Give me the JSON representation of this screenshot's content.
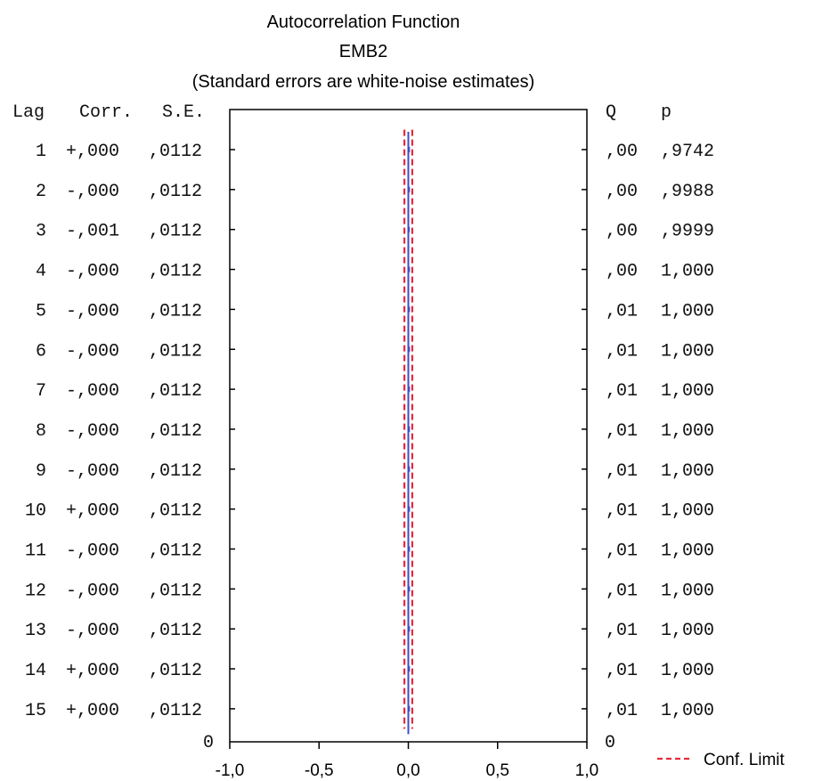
{
  "chart_data": {
    "type": "bar",
    "title": "Autocorrelation Function",
    "subtitle": "EMB2",
    "subtitle2": "(Standard errors are white-noise estimates)",
    "columns": {
      "lag": "Lag",
      "corr": "Corr.",
      "se": "S.E.",
      "q": "Q",
      "p": "p"
    },
    "rows": [
      {
        "lag": "1",
        "corr": "+,000",
        "se": ",0112",
        "q": ",00",
        "p": ",9742",
        "value": 0.0
      },
      {
        "lag": "2",
        "corr": "-,000",
        "se": ",0112",
        "q": ",00",
        "p": ",9988",
        "value": 0.0
      },
      {
        "lag": "3",
        "corr": "-,001",
        "se": ",0112",
        "q": ",00",
        "p": ",9999",
        "value": -0.001
      },
      {
        "lag": "4",
        "corr": "-,000",
        "se": ",0112",
        "q": ",00",
        "p": "1,000",
        "value": 0.0
      },
      {
        "lag": "5",
        "corr": "-,000",
        "se": ",0112",
        "q": ",01",
        "p": "1,000",
        "value": 0.0
      },
      {
        "lag": "6",
        "corr": "-,000",
        "se": ",0112",
        "q": ",01",
        "p": "1,000",
        "value": 0.0
      },
      {
        "lag": "7",
        "corr": "-,000",
        "se": ",0112",
        "q": ",01",
        "p": "1,000",
        "value": 0.0
      },
      {
        "lag": "8",
        "corr": "-,000",
        "se": ",0112",
        "q": ",01",
        "p": "1,000",
        "value": 0.0
      },
      {
        "lag": "9",
        "corr": "-,000",
        "se": ",0112",
        "q": ",01",
        "p": "1,000",
        "value": 0.0
      },
      {
        "lag": "10",
        "corr": "+,000",
        "se": ",0112",
        "q": ",01",
        "p": "1,000",
        "value": 0.0
      },
      {
        "lag": "11",
        "corr": "-,000",
        "se": ",0112",
        "q": ",01",
        "p": "1,000",
        "value": 0.0
      },
      {
        "lag": "12",
        "corr": "-,000",
        "se": ",0112",
        "q": ",01",
        "p": "1,000",
        "value": 0.0
      },
      {
        "lag": "13",
        "corr": "-,000",
        "se": ",0112",
        "q": ",01",
        "p": "1,000",
        "value": 0.0
      },
      {
        "lag": "14",
        "corr": "+,000",
        "se": ",0112",
        "q": ",01",
        "p": "1,000",
        "value": 0.0
      },
      {
        "lag": "15",
        "corr": "+,000",
        "se": ",0112",
        "q": ",01",
        "p": "1,000",
        "value": 0.0
      }
    ],
    "conf_limit": 0.022,
    "xlim": [
      -1.0,
      1.0
    ],
    "x_ticks": [
      -1.0,
      -0.5,
      0.0,
      0.5,
      1.0
    ],
    "x_tick_labels": [
      "-1,0",
      "-0,5",
      "0,0",
      "0,5",
      "1,0"
    ],
    "left_zero_label": "0",
    "right_zero_label": "0",
    "legend": {
      "label": "Conf. Limit",
      "position": "bottom-right"
    },
    "colors": {
      "bar": "#3a4fc4",
      "conf_limit": "#e8293b",
      "axis": "#000000"
    }
  }
}
